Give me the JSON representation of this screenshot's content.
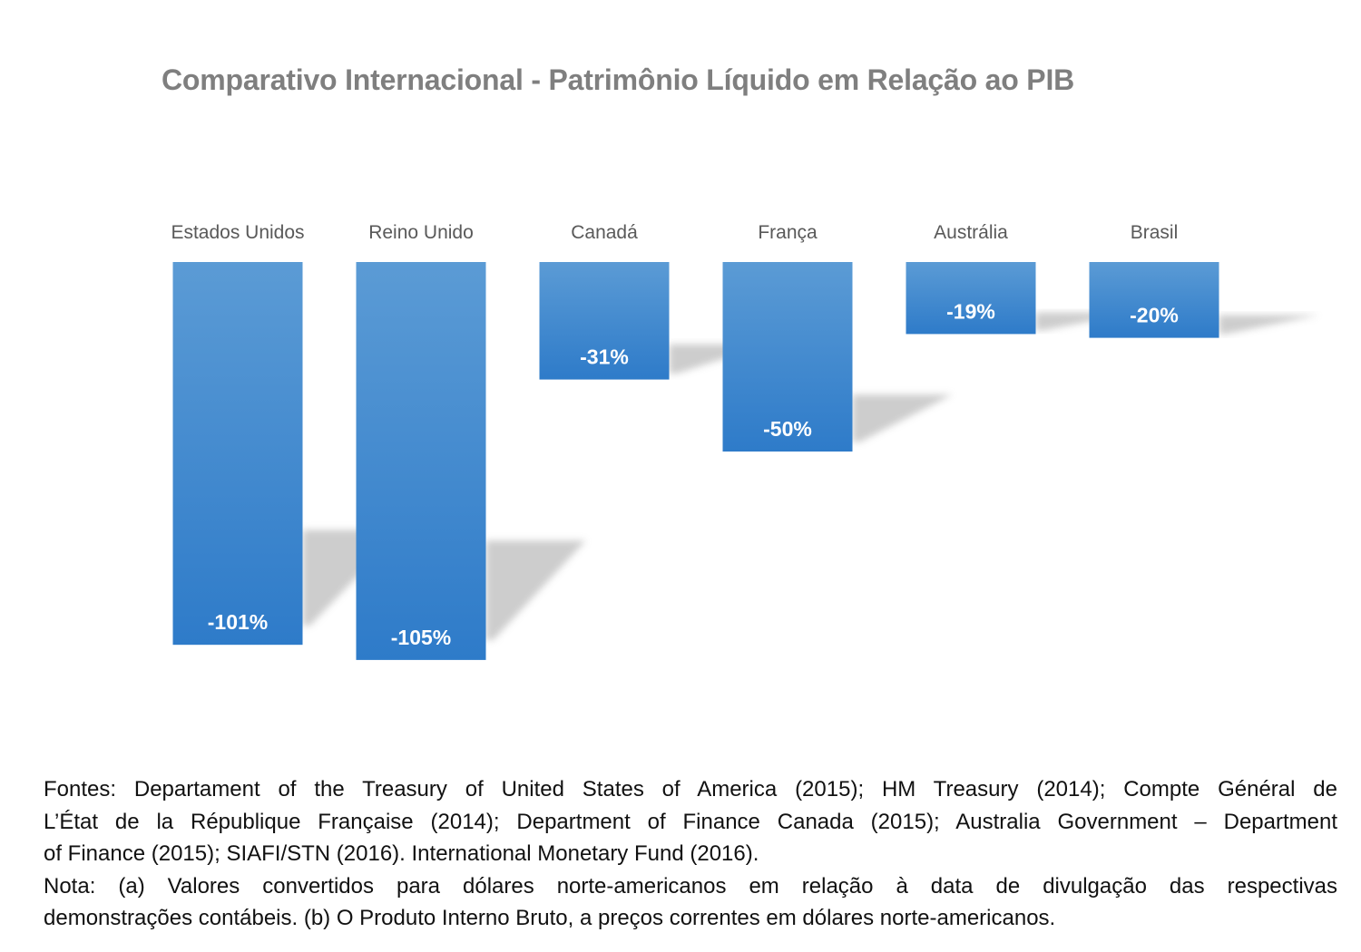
{
  "chart_data": {
    "type": "bar",
    "title": "Comparativo Internacional - Patrimônio Líquido em Relação ao PIB",
    "categories": [
      "Estados Unidos",
      "Reino Unido",
      "Canadá",
      "França",
      "Austrália",
      "Brasil"
    ],
    "values": [
      -101,
      -105,
      -31,
      -50,
      -19,
      -20
    ],
    "data_labels": [
      "-101%",
      "-105%",
      "-31%",
      "-50%",
      "-19%",
      "-20%"
    ],
    "unit": "%",
    "xlabel": "",
    "ylabel": "",
    "ylim": [
      -105,
      0
    ],
    "grid": false,
    "legend": "none",
    "category_axis_position": "top",
    "colors": {
      "bar_top": "#5b9bd5",
      "bar_bottom": "#2e7bc9",
      "shadow": "#c8c8c8",
      "title": "#7f7f7f",
      "category_label": "#595959",
      "data_label": "#ffffff"
    }
  },
  "notes": {
    "fontes_lines": [
      "Fontes: Departament of the Treasury of United States of America (2015); HM Treasury (2014); Compte Général de",
      "L’État de la République Française (2014); Department of Finance Canada (2015); Australia Government – Department",
      "of Finance (2015); SIAFI/STN (2016).  International Monetary Fund (2016)."
    ],
    "nota_lines": [
      "Nota: (a) Valores convertidos para dólares norte-americanos em relação à data de divulgação das respectivas",
      "demonstrações contábeis. (b) O Produto Interno Bruto, a preços correntes em dólares norte-americanos."
    ]
  }
}
